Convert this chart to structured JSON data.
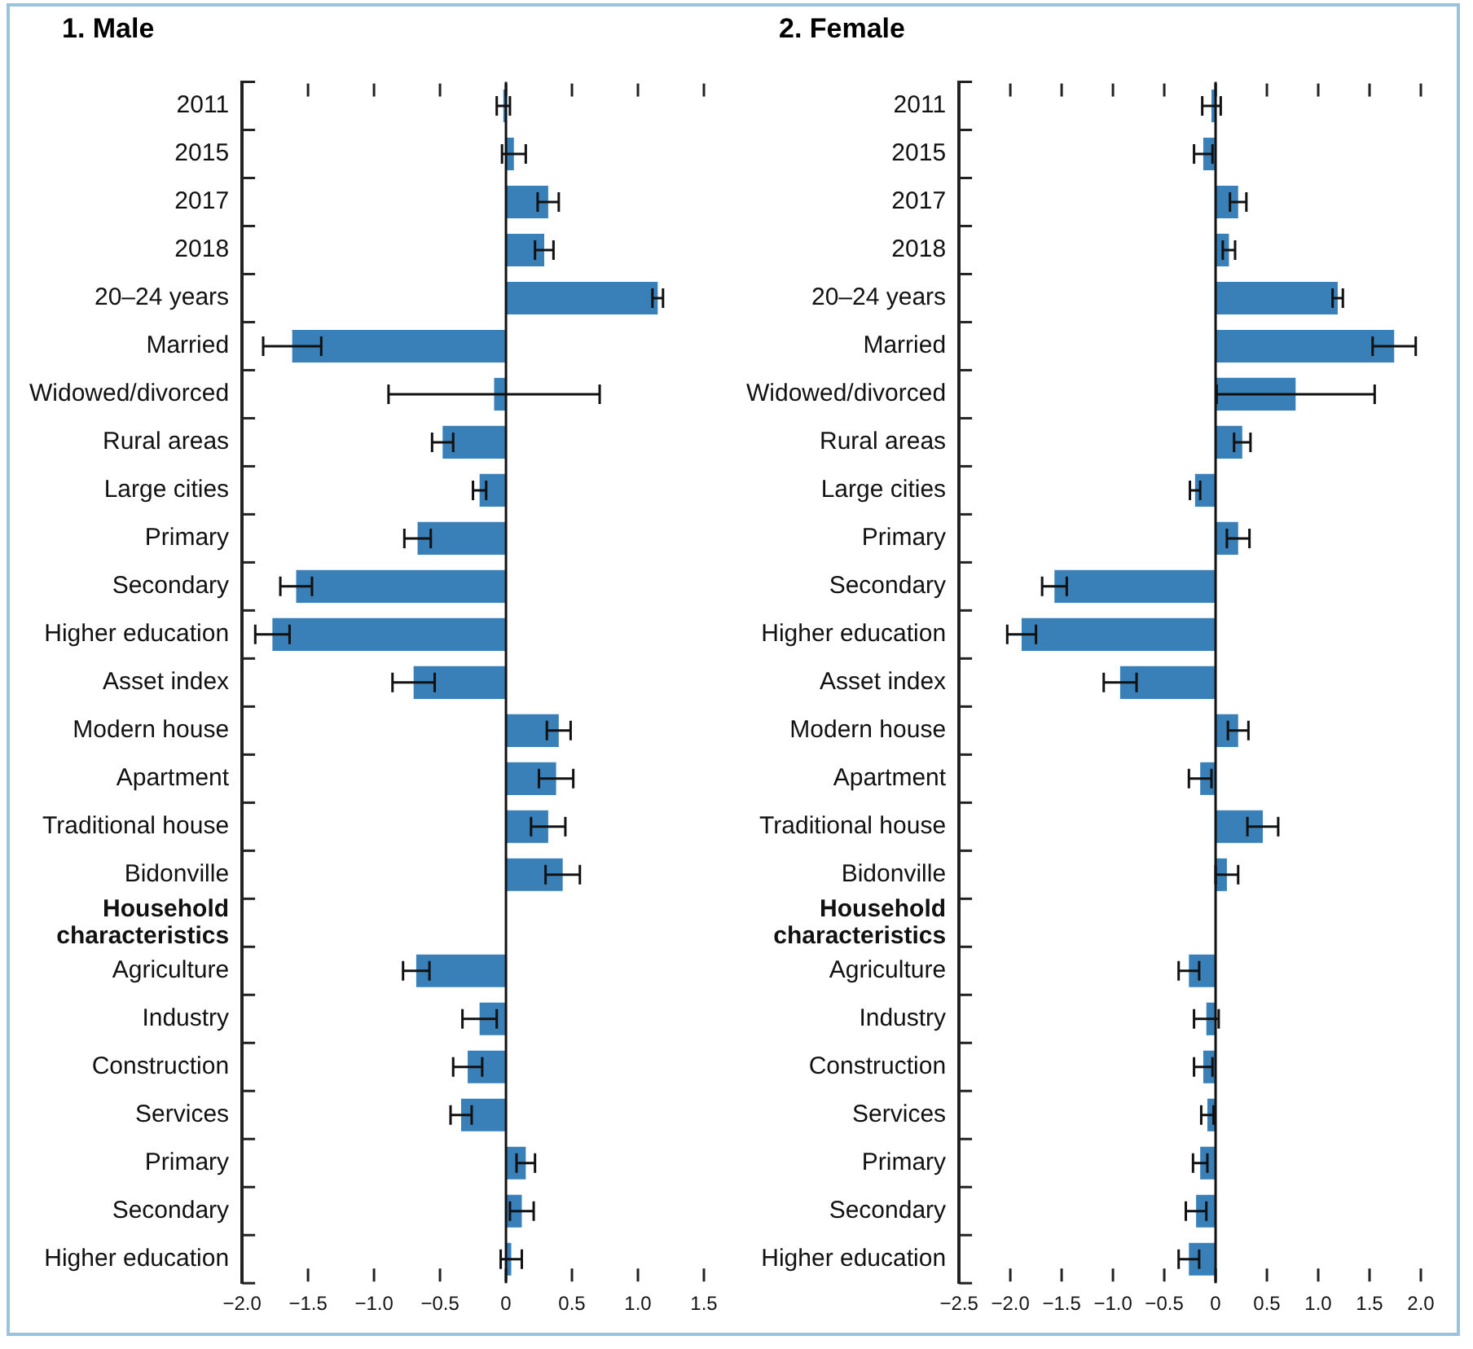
{
  "chart_data": [
    {
      "type": "bar",
      "orientation": "horizontal",
      "title": "1. Male",
      "color": "#3a80b8",
      "grid": false,
      "legend": false,
      "categories": [
        "2011",
        "2015",
        "2017",
        "2018",
        "20–24 years",
        "Married",
        "Widowed/divorced",
        "Rural areas",
        "Large cities",
        "Primary",
        "Secondary",
        "Higher education",
        "Asset index",
        "Modern house",
        "Apartment",
        "Traditional house",
        "Bidonville",
        "Household characteristics",
        "Agriculture",
        "Industry",
        "Construction",
        "Services",
        "Primary",
        "Secondary",
        "Higher education"
      ],
      "values": [
        -0.02,
        0.06,
        0.32,
        0.29,
        1.15,
        -1.62,
        -0.09,
        -0.48,
        -0.2,
        -0.67,
        -1.59,
        -1.77,
        -0.7,
        0.4,
        0.38,
        0.32,
        0.43,
        null,
        -0.68,
        -0.2,
        -0.29,
        -0.34,
        0.15,
        0.12,
        0.04
      ],
      "errors": [
        0.05,
        0.09,
        0.08,
        0.07,
        0.04,
        0.22,
        0.8,
        0.08,
        0.05,
        0.1,
        0.12,
        0.13,
        0.16,
        0.09,
        0.13,
        0.13,
        0.13,
        null,
        0.1,
        0.13,
        0.11,
        0.08,
        0.07,
        0.09,
        0.08
      ],
      "xlim": [
        -2.0,
        1.5
      ],
      "xticks": [
        {
          "value": -2.0,
          "label": "−2.0"
        },
        {
          "value": -1.5,
          "label": "−1.5"
        },
        {
          "value": -1.0,
          "label": "−1.0"
        },
        {
          "value": -0.5,
          "label": "−0.5"
        },
        0,
        {
          "value": 0.5,
          "label": "0.5"
        },
        {
          "value": 1.0,
          "label": "1.0"
        },
        {
          "value": 1.5,
          "label": "1.5"
        }
      ],
      "ref_lines": [
        {
          "axis": "x",
          "value": 0
        }
      ]
    },
    {
      "type": "bar",
      "orientation": "horizontal",
      "title": "2. Female",
      "color": "#3a80b8",
      "grid": false,
      "legend": false,
      "categories": [
        "2011",
        "2015",
        "2017",
        "2018",
        "20–24 years",
        "Married",
        "Widowed/divorced",
        "Rural areas",
        "Large cities",
        "Primary",
        "Secondary",
        "Higher education",
        "Asset index",
        "Modern house",
        "Apartment",
        "Traditional house",
        "Bidonville",
        "Household characteristics",
        "Agriculture",
        "Industry",
        "Construction",
        "Services",
        "Primary",
        "Secondary",
        "Higher education"
      ],
      "values": [
        -0.04,
        -0.12,
        0.22,
        0.13,
        1.19,
        1.74,
        0.78,
        0.26,
        -0.2,
        0.22,
        -1.57,
        -1.89,
        -0.93,
        0.22,
        -0.15,
        0.46,
        0.11,
        null,
        -0.26,
        -0.09,
        -0.12,
        -0.08,
        -0.15,
        -0.19,
        -0.26
      ],
      "errors": [
        0.09,
        0.09,
        0.08,
        0.06,
        0.05,
        0.21,
        0.77,
        0.08,
        0.05,
        0.11,
        0.12,
        0.14,
        0.16,
        0.1,
        0.11,
        0.15,
        0.11,
        null,
        0.1,
        0.12,
        0.09,
        0.06,
        0.07,
        0.1,
        0.1
      ],
      "xlim": [
        -2.5,
        2.0
      ],
      "xticks": [
        {
          "value": -2.5,
          "label": "−2.5"
        },
        {
          "value": -2.0,
          "label": "−2.0"
        },
        {
          "value": -1.5,
          "label": "−1.5"
        },
        {
          "value": -1.0,
          "label": "−1.0"
        },
        {
          "value": -0.5,
          "label": "−0.5"
        },
        0,
        {
          "value": 0.5,
          "label": "0.5"
        },
        {
          "value": 1.0,
          "label": "1.0"
        },
        {
          "value": 1.5,
          "label": "1.5"
        },
        {
          "value": 2.0,
          "label": "2.0"
        }
      ],
      "ref_lines": [
        {
          "axis": "x",
          "value": 0
        }
      ]
    }
  ]
}
